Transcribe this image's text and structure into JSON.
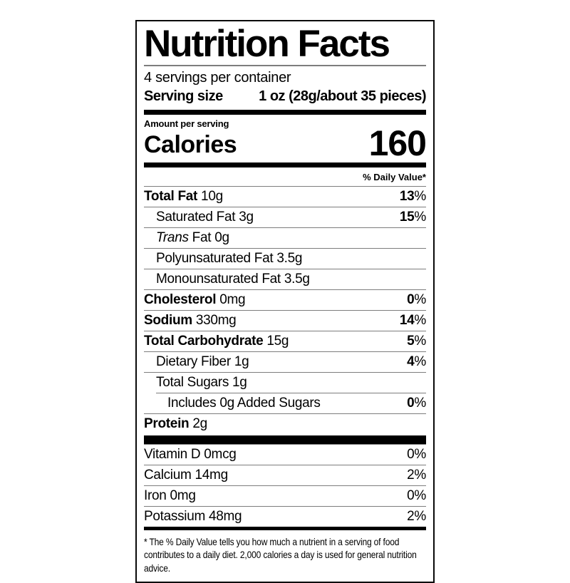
{
  "label": {
    "title": "Nutrition Facts",
    "servings_per_container": "4 servings per container",
    "serving_size_label": "Serving size",
    "serving_size_value": "1 oz (28g/about 35 pieces)",
    "amount_per_serving": "Amount per serving",
    "calories_label": "Calories",
    "calories_value": "160",
    "daily_value_header": "% Daily Value*",
    "percent_sign": "%",
    "footnote": "* The % Daily Value tells you how much a nutrient in a serving of food contributes to a daily diet. 2,000 calories a day is used for general nutrition advice."
  },
  "colors": {
    "text": "#000000",
    "hairline": "#7d7d7d",
    "bar": "#000000",
    "background": "#ffffff",
    "border": "#0a0a0a"
  },
  "nutrients": [
    {
      "name": "Total Fat",
      "amount": "10g",
      "dv": "13",
      "bold": true,
      "indent": 0
    },
    {
      "name": "Saturated Fat",
      "amount": "3g",
      "dv": "15",
      "bold": false,
      "indent": 1
    },
    {
      "name_italic": "Trans",
      "name": "Fat",
      "amount": "0g",
      "dv": "",
      "bold": false,
      "indent": 1
    },
    {
      "name": "Polyunsaturated Fat",
      "amount": "3.5g",
      "dv": "",
      "bold": false,
      "indent": 1
    },
    {
      "name": "Monounsaturated Fat",
      "amount": "3.5g",
      "dv": "",
      "bold": false,
      "indent": 1
    },
    {
      "name": "Cholesterol",
      "amount": "0mg",
      "dv": "0",
      "bold": true,
      "indent": 0
    },
    {
      "name": "Sodium",
      "amount": "330mg",
      "dv": "14",
      "bold": true,
      "indent": 0
    },
    {
      "name": "Total Carbohydrate",
      "amount": "15g",
      "dv": "5",
      "bold": true,
      "indent": 0
    },
    {
      "name": "Dietary Fiber",
      "amount": "1g",
      "dv": "4",
      "bold": false,
      "indent": 1
    },
    {
      "name": "Total Sugars",
      "amount": "1g",
      "dv": "",
      "bold": false,
      "indent": 1
    },
    {
      "name": "Includes 0g Added Sugars",
      "amount": "",
      "dv": "0",
      "bold": false,
      "indent": 2
    },
    {
      "name": "Protein",
      "amount": "2g",
      "dv": "",
      "bold": true,
      "indent": 0
    }
  ],
  "micronutrients": [
    {
      "name": "Vitamin D 0mcg",
      "dv": "0"
    },
    {
      "name": "Calcium 14mg",
      "dv": "2"
    },
    {
      "name": "Iron 0mg",
      "dv": "0"
    },
    {
      "name": "Potassium 48mg",
      "dv": "2"
    }
  ]
}
